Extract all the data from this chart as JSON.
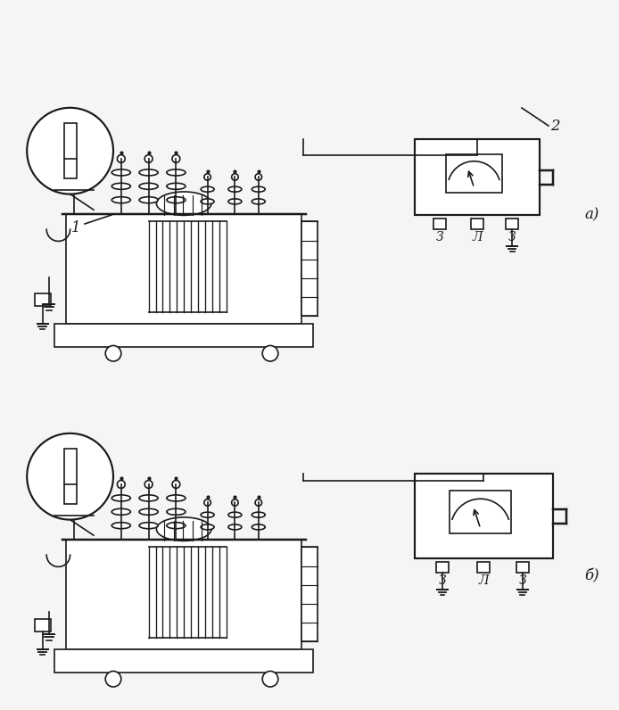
{
  "bg_color": "#f5f5f5",
  "line_color": "#1a1a1a",
  "label_1": "1",
  "label_2": "2",
  "label_a": "а)",
  "label_b": "б)",
  "label_Z": "З",
  "label_L": "Л",
  "label_Z2": "З"
}
